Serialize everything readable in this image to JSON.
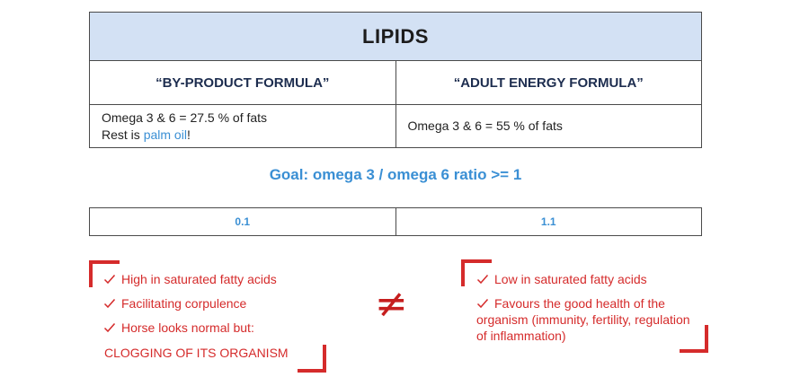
{
  "table": {
    "title": "LIPIDS",
    "col1_header": "“BY-PRODUCT FORMULA”",
    "col2_header": "“ADULT ENERGY FORMULA”",
    "col1_line1": "Omega 3 & 6 = 27.5 % of fats",
    "col1_line2_prefix": "Rest is ",
    "col1_line2_highlight": "palm oil",
    "col1_line2_suffix": "!",
    "col2_line1": "Omega 3 & 6 = 55 % of fats"
  },
  "goal": "Goal: omega 3 / omega 6 ratio >= 1",
  "ratios": [
    "0.1",
    "1.1"
  ],
  "left_list": {
    "items": [
      "High in saturated fatty acids",
      "Facilitating corpulence",
      "Horse looks normal but:"
    ],
    "conclusion": "CLOGGING OF ITS ORGANISM"
  },
  "right_list": {
    "items": [
      "Low in saturated fatty acids",
      "Favours the good health of the"
    ],
    "continuation": [
      "organism (immunity, fertility, regulation",
      "of inflammation)"
    ]
  },
  "separator_symbol": "≠",
  "colors": {
    "accent_blue": "#3a8fd4",
    "accent_red": "#d52b2b",
    "title_bg": "#d3e1f4",
    "header_text": "#1d2d4f"
  }
}
